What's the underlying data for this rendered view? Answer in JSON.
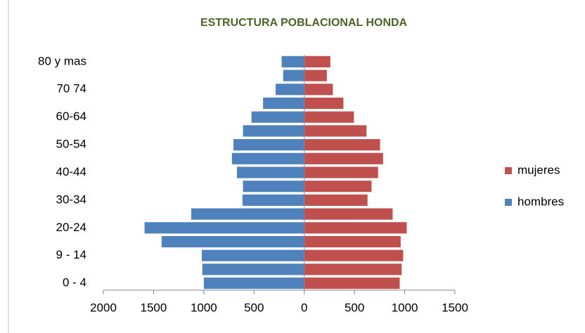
{
  "chart_data": {
    "type": "bar",
    "orientation": "horizontal",
    "stacked": false,
    "title": "ESTRUCTURA POBLACIONAL HONDA",
    "categories": [
      "0 - 4",
      null,
      "9 - 14",
      null,
      "20-24",
      null,
      "30-34",
      null,
      "40-44",
      null,
      "50-54",
      null,
      "60-64",
      null,
      "70 74",
      null,
      "80 y mas"
    ],
    "series": [
      {
        "name": "mujeres",
        "color": "#c0504d",
        "values": [
          950,
          970,
          985,
          960,
          1020,
          880,
          630,
          670,
          735,
          785,
          755,
          620,
          495,
          390,
          285,
          225,
          260
        ]
      },
      {
        "name": "hombres",
        "color": "#4f81bd",
        "values": [
          -1000,
          -1015,
          -1020,
          -1420,
          -1590,
          -1125,
          -615,
          -610,
          -670,
          -720,
          -705,
          -610,
          -525,
          -410,
          -285,
          -210,
          -225
        ]
      }
    ],
    "xlim": [
      -2000,
      1500
    ],
    "xticks": [
      {
        "value": -2000,
        "label": "2000"
      },
      {
        "value": -1500,
        "label": "1500"
      },
      {
        "value": -1000,
        "label": "1000"
      },
      {
        "value": -500,
        "label": "500"
      },
      0,
      500,
      1000,
      1500
    ],
    "legend": "right",
    "grid": false
  }
}
